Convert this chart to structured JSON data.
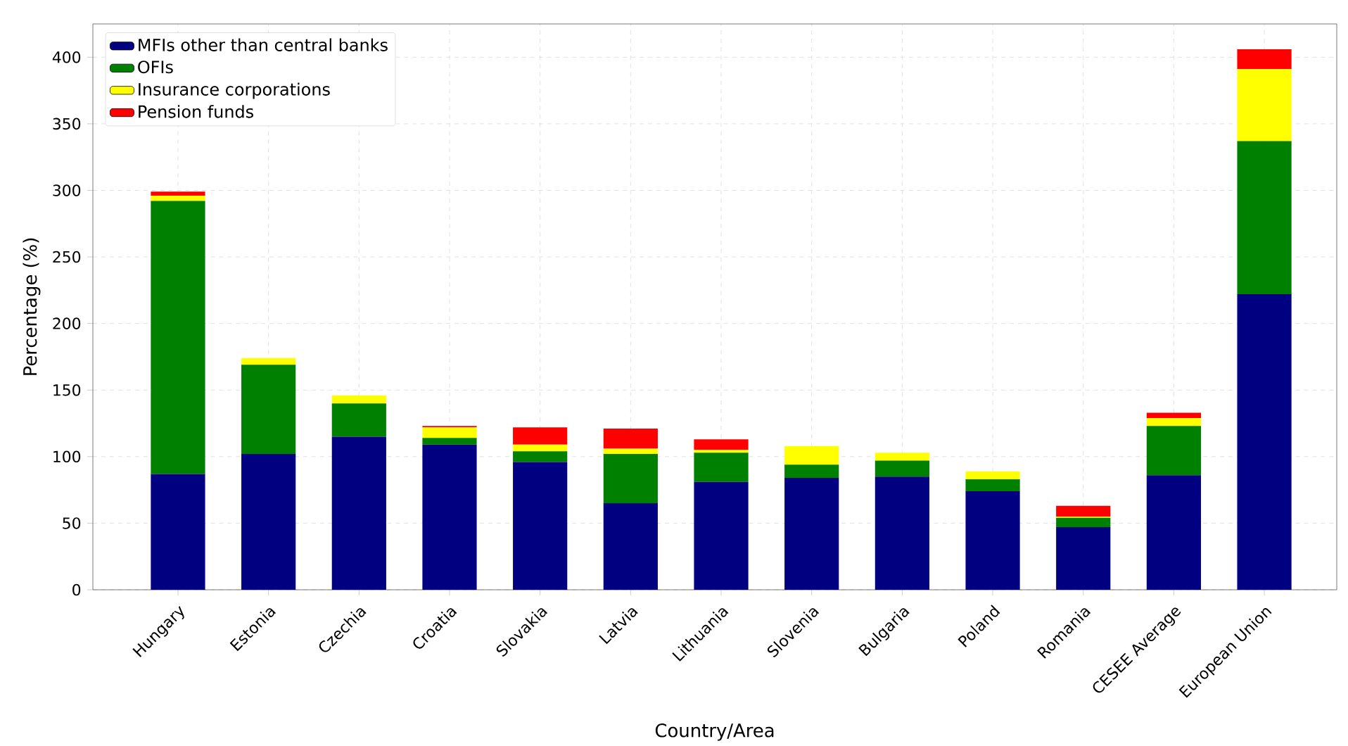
{
  "chart_data": {
    "type": "bar",
    "stacked": true,
    "xlabel": "Country/Area",
    "ylabel": "Percentage (%)",
    "categories": [
      "Hungary",
      "Estonia",
      "Czechia",
      "Croatia",
      "Slovakia",
      "Latvia",
      "Lithuania",
      "Slovenia",
      "Bulgaria",
      "Poland",
      "Romania",
      "CESEE Average",
      "European Union"
    ],
    "series": [
      {
        "name": "MFIs other than central banks",
        "color": "#000080",
        "values": [
          87,
          102,
          115,
          109,
          96,
          65,
          81,
          84,
          85,
          74,
          47,
          86,
          222
        ]
      },
      {
        "name": "OFIs",
        "color": "#008000",
        "values": [
          205,
          67,
          25,
          5,
          8,
          37,
          22,
          10,
          12,
          9,
          7,
          37,
          115
        ]
      },
      {
        "name": "Insurance corporations",
        "color": "#ffff00",
        "values": [
          4,
          5,
          6,
          8,
          5,
          4,
          2,
          14,
          6,
          6,
          1,
          6,
          54
        ]
      },
      {
        "name": "Pension funds",
        "color": "#ff0000",
        "values": [
          3,
          0,
          0,
          1,
          13,
          15,
          8,
          0,
          0,
          0,
          8,
          4,
          15
        ]
      }
    ],
    "ylim": [
      0,
      425
    ],
    "yticks": [
      0,
      50,
      100,
      150,
      200,
      250,
      300,
      350,
      400
    ],
    "grid": true,
    "legend": "top left"
  }
}
